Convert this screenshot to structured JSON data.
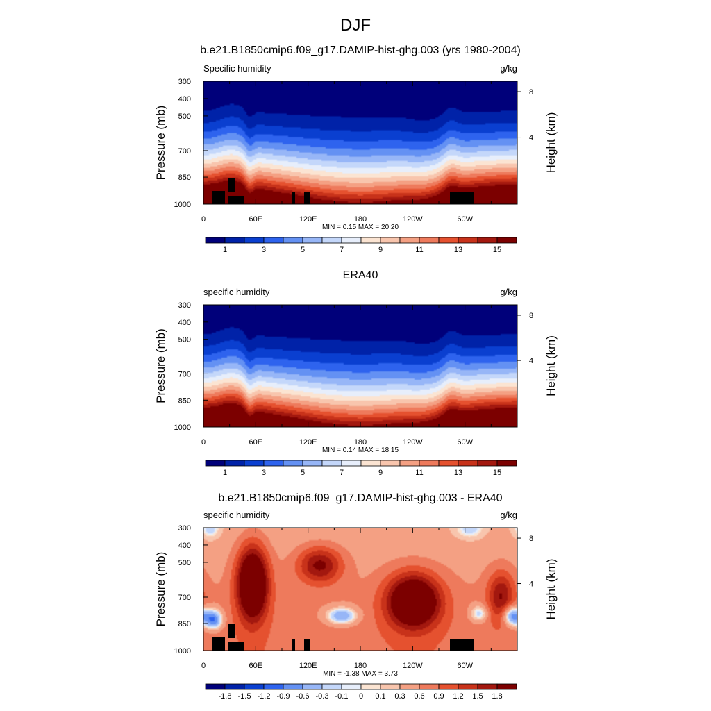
{
  "figure": {
    "title": "DJF"
  },
  "chart_data": [
    {
      "type": "heatmap",
      "title": "b.e21.B1850cmip6.f09_g17.DAMIP-hist-ghg.003 (yrs 1980-2004)",
      "left_label": "Specific humidity",
      "units": "g/kg",
      "ylabel": "Pressure (mb)",
      "ylabel_right": "Height (km)",
      "x_ticks": [
        "0",
        "60E",
        "120E",
        "180",
        "120W",
        "60W"
      ],
      "y_ticks": [
        "300",
        "400",
        "500",
        "700",
        "850",
        "1000"
      ],
      "y_right_ticks": [
        "8",
        "4"
      ],
      "min": "0.15",
      "max": "20.20",
      "stats_text": "MIN =   0.15  MAX =  20.20",
      "colorbar_labels": [
        "1",
        "3",
        "5",
        "7",
        "9",
        "11",
        "13",
        "15"
      ],
      "colorbar_colors": [
        "#00007a",
        "#0022a8",
        "#0a3fd0",
        "#2e63ee",
        "#6491f3",
        "#97b6f7",
        "#c4d7fa",
        "#e7eefb",
        "#fbe4d2",
        "#f8c5ad",
        "#f4a083",
        "#ee7a5c",
        "#e5512f",
        "#c8321a",
        "#a3180f",
        "#7c0000"
      ],
      "masked_terrain": true
    },
    {
      "type": "heatmap",
      "title": "ERA40",
      "left_label": "specific humidity",
      "units": "g/kg",
      "ylabel": "Pressure (mb)",
      "ylabel_right": "Height (km)",
      "x_ticks": [
        "0",
        "60E",
        "120E",
        "180",
        "120W",
        "60W"
      ],
      "y_ticks": [
        "300",
        "400",
        "500",
        "700",
        "850",
        "1000"
      ],
      "y_right_ticks": [
        "8",
        "4"
      ],
      "min": "0.14",
      "max": "18.15",
      "stats_text": "MIN =   0.14  MAX =  18.15",
      "colorbar_labels": [
        "1",
        "3",
        "5",
        "7",
        "9",
        "11",
        "13",
        "15"
      ],
      "colorbar_colors": [
        "#00007a",
        "#0022a8",
        "#0a3fd0",
        "#2e63ee",
        "#6491f3",
        "#97b6f7",
        "#c4d7fa",
        "#e7eefb",
        "#fbe4d2",
        "#f8c5ad",
        "#f4a083",
        "#ee7a5c",
        "#e5512f",
        "#c8321a",
        "#a3180f",
        "#7c0000"
      ],
      "masked_terrain": false
    },
    {
      "type": "heatmap",
      "title": "b.e21.B1850cmip6.f09_g17.DAMIP-hist-ghg.003 - ERA40",
      "left_label": "specific humidity",
      "units": "g/kg",
      "ylabel": "Pressure (mb)",
      "ylabel_right": "Height (km)",
      "x_ticks": [
        "0",
        "60E",
        "120E",
        "180",
        "120W",
        "60W"
      ],
      "y_ticks": [
        "300",
        "400",
        "500",
        "700",
        "850",
        "1000"
      ],
      "y_right_ticks": [
        "8",
        "4"
      ],
      "min": "-1.38",
      "max": "3.73",
      "stats_text": "MIN =  -1.38  MAX =   3.73",
      "colorbar_labels": [
        "-1.8",
        "-1.5",
        "-1.2",
        "-0.9",
        "-0.6",
        "-0.3",
        "-0.1",
        "0",
        "0.1",
        "0.3",
        "0.6",
        "0.9",
        "1.2",
        "1.5",
        "1.8"
      ],
      "colorbar_colors": [
        "#00007a",
        "#0022a8",
        "#0a3fd0",
        "#2e63ee",
        "#6491f3",
        "#97b6f7",
        "#c4d7fa",
        "#e7eefb",
        "#fbe4d2",
        "#f8c5ad",
        "#f4a083",
        "#ee7a5c",
        "#e5512f",
        "#c8321a",
        "#a3180f",
        "#7c0000"
      ],
      "masked_terrain": true
    }
  ]
}
